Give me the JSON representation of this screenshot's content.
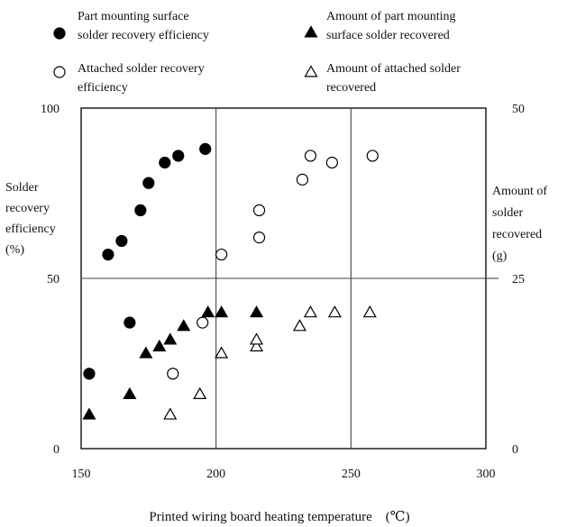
{
  "chart_data": {
    "type": "scatter",
    "title": "",
    "xlabel": "Printed wiring board heating temperature　(℃)",
    "ylabel_left": [
      "Solder",
      "recovery",
      "efficiency",
      "(%)"
    ],
    "ylabel_right": [
      "Amount of",
      "solder",
      "recovered",
      "(g)"
    ],
    "xlim": [
      150,
      300
    ],
    "ylim_left": [
      0,
      100
    ],
    "ylim_right": [
      0,
      50
    ],
    "x_ticks": [
      "150",
      "200",
      "250",
      "300"
    ],
    "y_left_ticks": [
      "0",
      "50",
      "100"
    ],
    "y_right_ticks": [
      "0",
      "25",
      "50"
    ],
    "grid": true,
    "legend_position": "top",
    "series": [
      {
        "name": "Part mounting surface solder recovery efficiency",
        "legend_lines": [
          "Part mounting surface",
          "solder recovery efficiency"
        ],
        "axis": "left",
        "marker": "filled-circle",
        "points": [
          [
            153,
            22
          ],
          [
            160,
            57
          ],
          [
            165,
            61
          ],
          [
            168,
            37
          ],
          [
            172,
            70
          ],
          [
            175,
            78
          ],
          [
            181,
            84
          ],
          [
            186,
            86
          ],
          [
            196,
            88
          ]
        ]
      },
      {
        "name": "Attached solder recovery efficiency",
        "legend_lines": [
          "Attached solder recovery",
          "efficiency"
        ],
        "axis": "left",
        "marker": "open-circle",
        "points": [
          [
            184,
            22
          ],
          [
            195,
            37
          ],
          [
            202,
            57
          ],
          [
            216,
            62
          ],
          [
            216,
            70
          ],
          [
            232,
            79
          ],
          [
            235,
            86
          ],
          [
            243,
            84
          ],
          [
            258,
            86
          ]
        ]
      },
      {
        "name": "Amount of part mounting surface solder recovered",
        "legend_lines": [
          "Amount of part mounting",
          "surface solder recovered"
        ],
        "axis": "right",
        "marker": "filled-triangle",
        "points": [
          [
            153,
            5
          ],
          [
            168,
            8
          ],
          [
            174,
            14
          ],
          [
            179,
            15
          ],
          [
            183,
            16
          ],
          [
            188,
            18
          ],
          [
            197,
            20
          ],
          [
            202,
            20
          ],
          [
            215,
            20
          ]
        ]
      },
      {
        "name": "Amount of attached solder recovered",
        "legend_lines": [
          "Amount of attached solder",
          "recovered"
        ],
        "axis": "right",
        "marker": "open-triangle",
        "points": [
          [
            183,
            5
          ],
          [
            194,
            8
          ],
          [
            202,
            14
          ],
          [
            215,
            15
          ],
          [
            215,
            16
          ],
          [
            231,
            18
          ],
          [
            235,
            20
          ],
          [
            244,
            20
          ],
          [
            257,
            20
          ]
        ]
      }
    ]
  }
}
